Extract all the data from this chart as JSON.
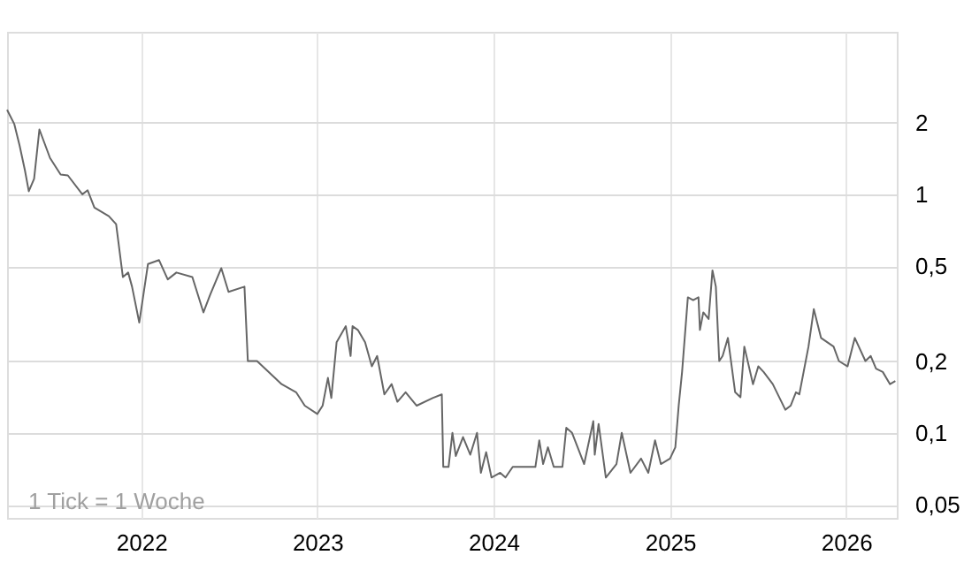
{
  "chart_data": {
    "type": "line",
    "log": "y",
    "grid": true,
    "marker": "none",
    "line_style": "solid",
    "annotations": [
      "1 Tick = 1 Woche"
    ],
    "xlim": [
      "2021-03-29",
      "2026-04-16"
    ],
    "xticks": [
      "2022",
      "2023",
      "2024",
      "2025",
      "2026"
    ],
    "ylim": [
      0.044,
      4.8
    ],
    "yticks": [
      {
        "value": 0.05,
        "label": "0,05"
      },
      {
        "value": 0.1,
        "label": "0,1"
      },
      {
        "value": 0.2,
        "label": "0,2"
      },
      {
        "value": 0.5,
        "label": "0,5"
      },
      1,
      2
    ],
    "series": [
      {
        "color": "#666666",
        "x": [
          "2021-03-29",
          "2021-04-13",
          "2021-04-24",
          "2021-05-05",
          "2021-05-13",
          "2021-05-24",
          "2021-06-04",
          "2021-06-26",
          "2021-07-18",
          "2021-08-02",
          "2021-09-01",
          "2021-09-12",
          "2021-09-26",
          "2021-10-26",
          "2021-11-10",
          "2021-11-24",
          "2021-12-05",
          "2021-12-13",
          "2021-12-28",
          "2022-01-15",
          "2022-02-07",
          "2022-02-25",
          "2022-03-15",
          "2022-04-17",
          "2022-05-10",
          "2022-05-24",
          "2022-06-16",
          "2022-07-01",
          "2022-08-03",
          "2022-08-10",
          "2022-08-29",
          "2022-10-05",
          "2022-10-19",
          "2022-11-18",
          "2022-12-06",
          "2023-01-01",
          "2023-01-12",
          "2023-01-23",
          "2023-01-30",
          "2023-02-10",
          "2023-03-01",
          "2023-03-11",
          "2023-03-15",
          "2023-03-26",
          "2023-04-10",
          "2023-04-24",
          "2023-05-05",
          "2023-05-20",
          "2023-06-04",
          "2023-06-16",
          "2023-07-03",
          "2023-07-26",
          "2023-08-28",
          "2023-09-16",
          "2023-09-19",
          "2023-09-30",
          "2023-10-08",
          "2023-10-15",
          "2023-10-30",
          "2023-11-14",
          "2023-11-28",
          "2023-12-06",
          "2023-12-17",
          "2023-12-28",
          "2024-01-15",
          "2024-01-26",
          "2024-02-10",
          "2024-02-28",
          "2024-03-28",
          "2024-04-05",
          "2024-04-13",
          "2024-04-23",
          "2024-05-05",
          "2024-05-23",
          "2024-05-31",
          "2024-06-12",
          "2024-07-07",
          "2024-07-26",
          "2024-07-29",
          "2024-08-06",
          "2024-08-21",
          "2024-09-12",
          "2024-09-23",
          "2024-10-11",
          "2024-11-02",
          "2024-11-17",
          "2024-12-01",
          "2024-12-13",
          "2025-01-01",
          "2025-01-12",
          "2025-01-19",
          "2025-01-26",
          "2025-02-07",
          "2025-02-18",
          "2025-03-01",
          "2025-03-04",
          "2025-03-11",
          "2025-03-22",
          "2025-03-30",
          "2025-04-06",
          "2025-04-13",
          "2025-04-20",
          "2025-05-01",
          "2025-05-16",
          "2025-05-27",
          "2025-06-04",
          "2025-06-22",
          "2025-07-03",
          "2025-07-14",
          "2025-08-02",
          "2025-08-20",
          "2025-08-28",
          "2025-09-08",
          "2025-09-19",
          "2025-09-26",
          "2025-10-15",
          "2025-10-26",
          "2025-11-10",
          "2025-12-06",
          "2025-12-17",
          "2026-01-04",
          "2026-01-19",
          "2026-02-10",
          "2026-02-21",
          "2026-03-04",
          "2026-03-18",
          "2026-04-02",
          "2026-04-13"
        ],
        "values": [
          2.26,
          1.97,
          1.6,
          1.26,
          1.03,
          1.16,
          1.87,
          1.42,
          1.21,
          1.2,
          1.0,
          1.04,
          0.88,
          0.81,
          0.75,
          0.45,
          0.47,
          0.41,
          0.29,
          0.51,
          0.53,
          0.44,
          0.47,
          0.45,
          0.32,
          0.38,
          0.49,
          0.39,
          0.41,
          0.2,
          0.2,
          0.17,
          0.16,
          0.148,
          0.13,
          0.12,
          0.13,
          0.17,
          0.14,
          0.24,
          0.28,
          0.21,
          0.28,
          0.27,
          0.24,
          0.19,
          0.21,
          0.145,
          0.16,
          0.135,
          0.148,
          0.13,
          0.14,
          0.145,
          0.072,
          0.072,
          0.1,
          0.08,
          0.096,
          0.081,
          0.1,
          0.068,
          0.083,
          0.065,
          0.068,
          0.065,
          0.072,
          0.072,
          0.072,
          0.093,
          0.074,
          0.087,
          0.072,
          0.072,
          0.105,
          0.1,
          0.074,
          0.112,
          0.081,
          0.109,
          0.065,
          0.074,
          0.1,
          0.068,
          0.078,
          0.068,
          0.093,
          0.074,
          0.078,
          0.087,
          0.13,
          0.18,
          0.37,
          0.36,
          0.37,
          0.27,
          0.32,
          0.3,
          0.48,
          0.41,
          0.2,
          0.21,
          0.25,
          0.148,
          0.141,
          0.23,
          0.16,
          0.19,
          0.18,
          0.16,
          0.135,
          0.125,
          0.13,
          0.148,
          0.145,
          0.23,
          0.33,
          0.25,
          0.23,
          0.2,
          0.19,
          0.25,
          0.2,
          0.21,
          0.186,
          0.18,
          0.16,
          0.165
        ]
      }
    ]
  }
}
